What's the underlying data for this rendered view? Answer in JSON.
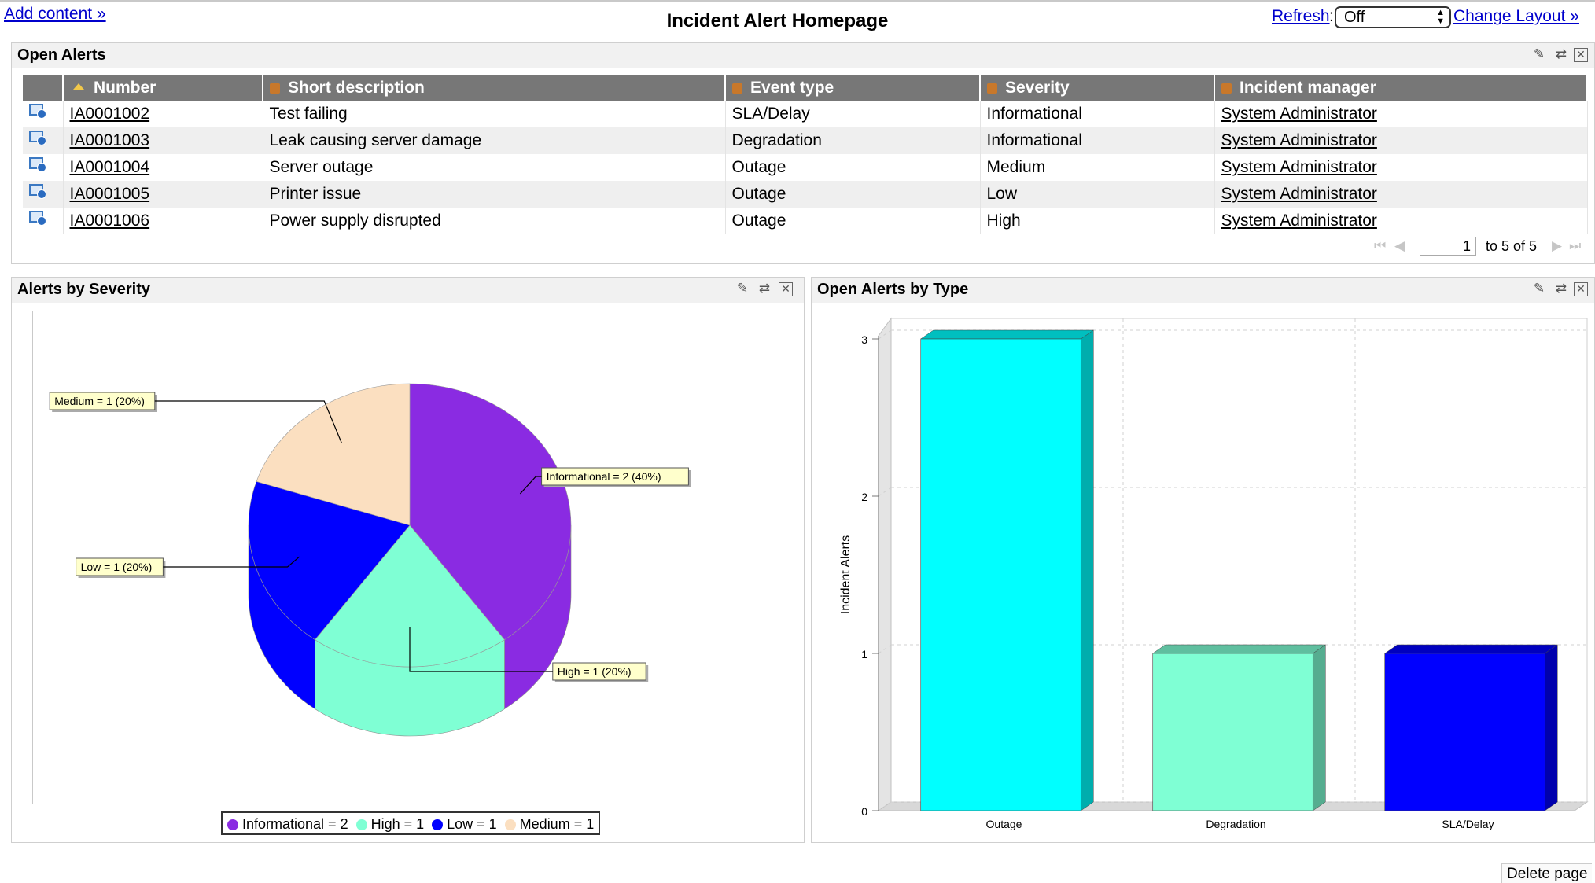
{
  "top": {
    "add_content": "Add content »",
    "title": "Incident Alert Homepage",
    "refresh_label": "Refresh",
    "refresh_colon": ":",
    "refresh_value": "Off",
    "change_layout": "Change Layout »"
  },
  "open_alerts": {
    "title": "Open Alerts",
    "columns": [
      "Number",
      "Short description",
      "Event type",
      "Severity",
      "Incident manager"
    ],
    "rows": [
      {
        "number": "IA0001002",
        "description": "Test failing",
        "event_type": "SLA/Delay",
        "severity": "Informational",
        "manager": "System Administrator"
      },
      {
        "number": "IA0001003",
        "description": "Leak causing server damage",
        "event_type": "Degradation",
        "severity": "Informational",
        "manager": "System Administrator"
      },
      {
        "number": "IA0001004",
        "description": "Server outage",
        "event_type": "Outage",
        "severity": "Medium",
        "manager": "System Administrator"
      },
      {
        "number": "IA0001005",
        "description": "Printer issue",
        "event_type": "Outage",
        "severity": "Low",
        "manager": "System Administrator"
      },
      {
        "number": "IA0001006",
        "description": "Power supply disrupted",
        "event_type": "Outage",
        "severity": "High",
        "manager": "System Administrator"
      }
    ],
    "pager": {
      "page_input": "1",
      "range_text": "to 5 of 5"
    }
  },
  "severity_panel": {
    "title": "Alerts by Severity"
  },
  "type_panel": {
    "title": "Open Alerts by Type"
  },
  "chart_data": [
    {
      "type": "pie",
      "title": "Alerts by Severity",
      "slices": [
        {
          "label": "Informational",
          "value": 2,
          "percent": 40,
          "color": "#8a2be2",
          "callout": "Informational = 2 (40%)"
        },
        {
          "label": "High",
          "value": 1,
          "percent": 20,
          "color": "#7fffd4",
          "callout": "High = 1 (20%)"
        },
        {
          "label": "Low",
          "value": 1,
          "percent": 20,
          "color": "#0000ff",
          "callout": "Low = 1 (20%)"
        },
        {
          "label": "Medium",
          "value": 1,
          "percent": 20,
          "color": "#fbdfc0",
          "callout": "Medium = 1 (20%)"
        }
      ],
      "legend": [
        "Informational = 2",
        "High = 1",
        "Low = 1",
        "Medium = 1"
      ],
      "legend_placement": "bottom"
    },
    {
      "type": "bar",
      "title": "Open Alerts by Type",
      "categories": [
        "Outage",
        "Degradation",
        "SLA/Delay"
      ],
      "values": [
        3,
        1,
        1
      ],
      "colors": [
        "#00ffff",
        "#7fffd4",
        "#0000ff"
      ],
      "ylabel": "Incident Alerts",
      "xlabel": "",
      "ylim": [
        0,
        3
      ],
      "yticks": [
        "0",
        "1",
        "2",
        "3"
      ],
      "grid": true
    }
  ],
  "footer": {
    "delete_page": "Delete page"
  },
  "colors": {
    "link": "#0000cc",
    "header_bg": "#777777",
    "panel_header_bg": "#f1f1f1"
  }
}
